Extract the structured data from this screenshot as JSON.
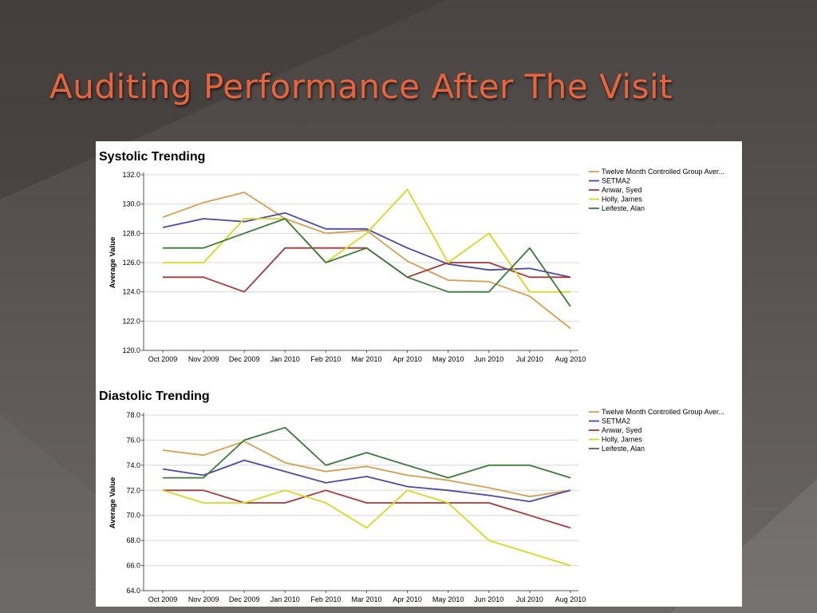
{
  "slide": {
    "title": "Auditing Performance After The Visit"
  },
  "colors": {
    "title": "#e8643c",
    "background": "#554f4d",
    "panel": "#ffffff"
  },
  "chart_data": [
    {
      "type": "line",
      "title": "Systolic Trending",
      "xlabel": "",
      "ylabel": "Average Value",
      "categories": [
        "Oct 2009",
        "Nov 2009",
        "Dec 2009",
        "Jan 2010",
        "Feb 2010",
        "Mar 2010",
        "Apr 2010",
        "May 2010",
        "Jun 2010",
        "Jul 2010",
        "Aug 2010"
      ],
      "ylim": [
        120.0,
        132.0
      ],
      "yticks": [
        "120.0",
        "122.0",
        "124.0",
        "126.0",
        "128.0",
        "130.0",
        "132.0"
      ],
      "grid": true,
      "legend": "right",
      "series": [
        {
          "name": "Twelve Month Controlled Group Aver...",
          "color": "#d4a050",
          "values": [
            129.1,
            130.1,
            130.8,
            129.0,
            128.0,
            128.2,
            126.1,
            124.8,
            124.7,
            123.7,
            121.5
          ]
        },
        {
          "name": "SETMA2",
          "color": "#4a4aa8",
          "values": [
            128.4,
            129.0,
            128.8,
            129.4,
            128.3,
            128.3,
            127.0,
            125.9,
            125.5,
            125.6,
            125.0
          ]
        },
        {
          "name": "Anwar, Syed",
          "color": "#a83838",
          "values": [
            125.0,
            125.0,
            124.0,
            127.0,
            127.0,
            127.0,
            125.0,
            126.0,
            126.0,
            125.0,
            125.0
          ]
        },
        {
          "name": "Holly, James",
          "color": "#d8d820",
          "values": [
            126.0,
            126.0,
            129.0,
            129.0,
            126.0,
            128.0,
            131.0,
            126.0,
            128.0,
            124.0,
            124.0
          ]
        },
        {
          "name": "Leifeste, Alan",
          "color": "#3a7a3a",
          "values": [
            127.0,
            127.0,
            128.0,
            129.0,
            126.0,
            127.0,
            125.0,
            124.0,
            124.0,
            127.0,
            123.0
          ]
        }
      ]
    },
    {
      "type": "line",
      "title": "Diastolic Trending",
      "xlabel": "",
      "ylabel": "Average Value",
      "categories": [
        "Oct 2009",
        "Nov 2009",
        "Dec 2009",
        "Jan 2010",
        "Feb 2010",
        "Mar 2010",
        "Apr 2010",
        "May 2010",
        "Jun 2010",
        "Jul 2010",
        "Aug 2010"
      ],
      "ylim": [
        64.0,
        78.0
      ],
      "yticks": [
        "64.0",
        "66.0",
        "68.0",
        "70.0",
        "72.0",
        "74.0",
        "76.0",
        "78.0"
      ],
      "grid": true,
      "legend": "right",
      "series": [
        {
          "name": "Twelve Month Controlled Group Aver...",
          "color": "#d4a050",
          "values": [
            75.2,
            74.8,
            75.9,
            74.2,
            73.5,
            73.9,
            73.2,
            72.8,
            72.2,
            71.5,
            72.0
          ]
        },
        {
          "name": "SETMA2",
          "color": "#4a4aa8",
          "values": [
            73.7,
            73.2,
            74.4,
            73.5,
            72.6,
            73.1,
            72.3,
            72.0,
            71.6,
            71.1,
            72.0
          ]
        },
        {
          "name": "Anwar, Syed",
          "color": "#a83838",
          "values": [
            72.0,
            72.0,
            71.0,
            71.0,
            72.0,
            71.0,
            71.0,
            71.0,
            71.0,
            70.0,
            69.0
          ]
        },
        {
          "name": "Holly, James",
          "color": "#d8d820",
          "values": [
            72.0,
            71.0,
            71.0,
            72.0,
            71.0,
            69.0,
            72.0,
            71.0,
            68.0,
            67.0,
            66.0
          ]
        },
        {
          "name": "Leifeste, Alan",
          "color": "#3a7a3a",
          "values": [
            73.0,
            73.0,
            76.0,
            77.0,
            74.0,
            75.0,
            74.0,
            73.0,
            74.0,
            74.0,
            73.0
          ]
        }
      ]
    }
  ]
}
